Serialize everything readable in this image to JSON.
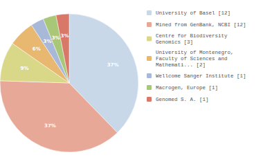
{
  "chart_data": {
    "type": "pie",
    "categories": [
      "University of Basel [12]",
      "Mined from GenBank, NCBI [12]",
      "Centre for Biodiversity\nGenomics [3]",
      "University of Montenegro,\nFaculty of Sciences and\nMathemati... [2]",
      "Wellcome Sanger Institute [1]",
      "Macrogen, Europe [1]",
      "Genomed S. A. [1]"
    ],
    "values": [
      37,
      37,
      9,
      6,
      3,
      3,
      3
    ],
    "value_labels": [
      "37%",
      "37%",
      "9%",
      "6%",
      "3%",
      "3%",
      "3%"
    ],
    "colors": [
      "#c8d8e8",
      "#e8a898",
      "#d8d888",
      "#e8b870",
      "#a8b8d8",
      "#a8c878",
      "#d87868"
    ],
    "data_labels": true,
    "legend": "right"
  }
}
